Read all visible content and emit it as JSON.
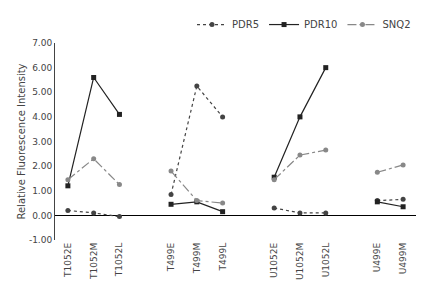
{
  "chart_data": {
    "type": "line",
    "categories": [
      "T1052E",
      "T1052M",
      "T1052L",
      null,
      "T499E",
      "T499M",
      "T499L",
      null,
      "U1052E",
      "U1052M",
      "U1052L",
      null,
      "U499E",
      "U499M"
    ],
    "series": [
      {
        "name": "PDR5",
        "color": "#444444",
        "line_style": "dotted",
        "marker": "circle",
        "values": [
          0.2,
          0.1,
          -0.05,
          null,
          0.85,
          5.25,
          4.0,
          null,
          0.3,
          0.1,
          0.1,
          null,
          0.6,
          0.65
        ]
      },
      {
        "name": "PDR10",
        "color": "#222222",
        "line_style": "solid",
        "marker": "square",
        "values": [
          1.2,
          5.6,
          4.1,
          null,
          0.45,
          0.55,
          0.15,
          null,
          1.55,
          4.0,
          6.0,
          null,
          0.55,
          0.35
        ]
      },
      {
        "name": "SNQ2",
        "color": "#888888",
        "line_style": "dashdot",
        "marker": "circle",
        "values": [
          1.45,
          2.3,
          1.25,
          null,
          1.8,
          0.6,
          0.5,
          null,
          1.45,
          2.45,
          2.65,
          null,
          1.75,
          2.05
        ]
      }
    ],
    "ylabel": "Relative Fluorescence Intensity",
    "ylim": [
      -1.0,
      7.0
    ],
    "yticks": [
      {
        "value": -1.0,
        "label": "-1.00"
      },
      {
        "value": 0.0,
        "label": "0.00"
      },
      {
        "value": 1.0,
        "label": "1.00"
      },
      {
        "value": 2.0,
        "label": "2.00"
      },
      {
        "value": 3.0,
        "label": "3.00"
      },
      {
        "value": 4.0,
        "label": "4.00"
      },
      {
        "value": 5.0,
        "label": "5.00"
      },
      {
        "value": 6.0,
        "label": "6.00"
      },
      {
        "value": 7.0,
        "label": "7.00"
      }
    ],
    "grid": false,
    "legend": "upper right"
  }
}
